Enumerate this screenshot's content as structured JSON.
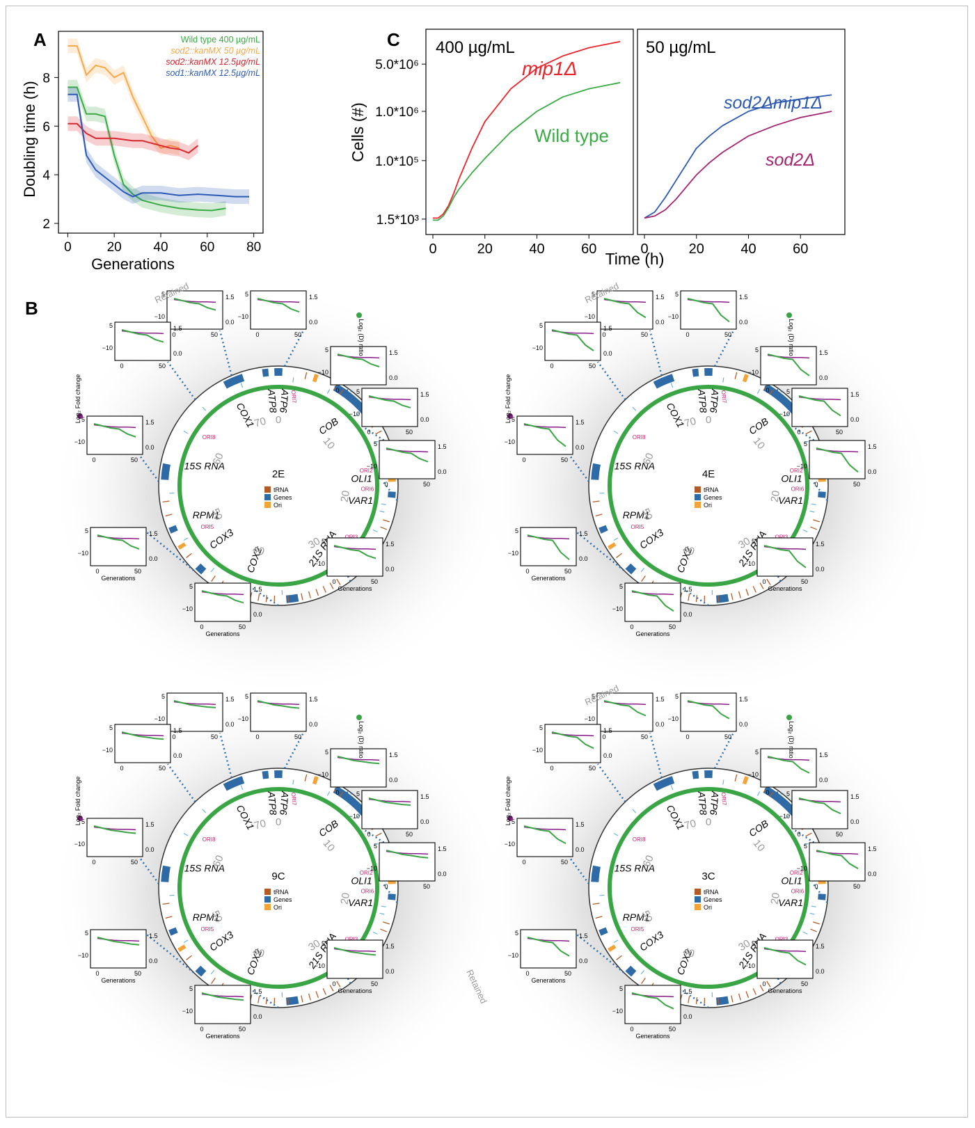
{
  "panel_letters": {
    "a": "A",
    "b": "B",
    "c": "C"
  },
  "colors": {
    "wild_type": "#3aaa45",
    "sod2_kanmx": "#f5a94a",
    "sod2_kanmx_low": "#d9262f",
    "sod1_kanmx": "#2b5ab5",
    "mip1": "#e8262b",
    "sod2_mip1": "#2b58b0",
    "sod2": "#a3236f",
    "trna": "#b35b26",
    "genes": "#2e6aa6",
    "ori": "#f2a33a",
    "ring_green": "#3aa545",
    "ori_label": "#d01a6e",
    "purple_dot": "#8a1b8a",
    "green_dot": "#3aa545"
  },
  "panel_a": {
    "legend": [
      {
        "label": "Wild type 400 µg/mL",
        "color": "#3aaa45"
      },
      {
        "label": "sod2::kanMX 50 µg/mL",
        "color": "#f5a94a"
      },
      {
        "label": "sod2::kanMX 12.5µg/mL",
        "color": "#d9262f"
      },
      {
        "label": "sod1::kanMX 12.5µg/mL",
        "color": "#2b5ab5"
      }
    ]
  },
  "panel_c": {
    "left_title": "400 µg/mL",
    "right_title": "50 µg/mL",
    "label_mip1": "mip1Δ",
    "label_wt": "Wild type",
    "label_sod2mip1": "sod2Δmip1Δ",
    "label_sod2": "sod2Δ"
  },
  "chart_data": [
    {
      "type": "line",
      "panel": "A",
      "xlabel": "Generations",
      "ylabel": "Doubling time (h)",
      "xlim": [
        -4,
        84
      ],
      "ylim": [
        1.6,
        9.9
      ],
      "xticks": [
        0,
        20,
        40,
        60,
        80
      ],
      "yticks": [
        2,
        4,
        6,
        8
      ],
      "series": [
        {
          "name": "Wild type 400 µg/mL",
          "x": [
            0,
            4,
            8,
            12,
            16,
            20,
            24,
            28,
            32,
            40,
            48,
            56,
            62,
            68
          ],
          "y": [
            7.6,
            7.6,
            6.5,
            6.5,
            6.4,
            4.8,
            3.6,
            3.2,
            2.95,
            2.75,
            2.62,
            2.55,
            2.53,
            2.62
          ]
        },
        {
          "name": "sod2::kanMX 50 µg/mL",
          "x": [
            0,
            4,
            8,
            12,
            16,
            20,
            24,
            28,
            32,
            36,
            40,
            44,
            48
          ],
          "y": [
            9.3,
            9.3,
            8.1,
            8.5,
            8.4,
            8.0,
            8.2,
            7.2,
            6.4,
            5.6,
            5.1,
            5.2,
            5.1
          ]
        },
        {
          "name": "sod2::kanMX 12.5µg/mL",
          "x": [
            0,
            4,
            8,
            12,
            16,
            20,
            24,
            28,
            32,
            36,
            40,
            44,
            48,
            52,
            56
          ],
          "y": [
            6.1,
            6.1,
            5.7,
            5.5,
            5.5,
            5.5,
            5.45,
            5.4,
            5.4,
            5.3,
            5.2,
            5.1,
            5.05,
            4.9,
            5.2
          ]
        },
        {
          "name": "sod1::kanMX 12.5µg/mL",
          "x": [
            0,
            4,
            8,
            12,
            16,
            20,
            24,
            28,
            32,
            40,
            48,
            56,
            64,
            72,
            78
          ],
          "y": [
            7.3,
            7.3,
            4.8,
            4.2,
            3.9,
            3.6,
            3.3,
            3.1,
            3.25,
            3.25,
            3.15,
            3.2,
            3.15,
            3.1,
            3.1
          ]
        }
      ]
    },
    {
      "type": "line",
      "panel": "C",
      "subplot": "400 µg/mL",
      "xlabel": "Time (h)",
      "ylabel": "Cells (#)",
      "xticks": [
        0,
        20,
        40,
        60
      ],
      "ytick_labels": [
        "1.5*10³",
        "1.0*10⁵",
        "1.0*10⁶",
        "5.0*10⁶"
      ],
      "series": [
        {
          "name": "mip1Δ",
          "x": [
            0,
            2,
            4,
            6,
            8,
            10,
            15,
            20,
            30,
            40,
            50,
            60,
            72
          ],
          "y": [
            0.08,
            0.08,
            0.1,
            0.14,
            0.2,
            0.27,
            0.42,
            0.55,
            0.71,
            0.81,
            0.87,
            0.91,
            0.94
          ]
        },
        {
          "name": "Wild type",
          "x": [
            0,
            2,
            4,
            6,
            8,
            10,
            15,
            20,
            30,
            40,
            50,
            60,
            72
          ],
          "y": [
            0.07,
            0.07,
            0.09,
            0.13,
            0.18,
            0.22,
            0.3,
            0.37,
            0.5,
            0.6,
            0.67,
            0.71,
            0.74
          ]
        }
      ]
    },
    {
      "type": "line",
      "panel": "C",
      "subplot": "50 µg/mL",
      "xlabel": "Time (h)",
      "xticks": [
        0,
        20,
        40,
        60
      ],
      "series": [
        {
          "name": "sod2Δmip1Δ",
          "x": [
            0,
            4,
            8,
            12,
            16,
            20,
            25,
            30,
            40,
            50,
            60,
            72
          ],
          "y": [
            0.08,
            0.11,
            0.18,
            0.26,
            0.34,
            0.42,
            0.48,
            0.53,
            0.6,
            0.64,
            0.66,
            0.68
          ]
        },
        {
          "name": "sod2Δ",
          "x": [
            0,
            4,
            8,
            12,
            16,
            20,
            25,
            30,
            40,
            50,
            60,
            72
          ],
          "y": [
            0.08,
            0.09,
            0.12,
            0.17,
            0.23,
            0.29,
            0.35,
            0.4,
            0.48,
            0.53,
            0.57,
            0.6
          ]
        }
      ]
    }
  ],
  "panel_b": {
    "genome_labels": [
      "COX1",
      "ATP8",
      "ATP6",
      "COB",
      "OLI1",
      "VAR1",
      "21S RNA",
      "COX2",
      "COX3",
      "RPM1",
      "15S RNA"
    ],
    "ori_labels": [
      "ORI7",
      "ORI2",
      "ORI6",
      "ORI3",
      "ORI4",
      "ORI1",
      "ORI5",
      "ORI8"
    ],
    "coord_labels": [
      "0",
      "10",
      "20",
      "30",
      "40",
      "50",
      "60",
      "70"
    ],
    "legend": [
      "tRNA",
      "Genes",
      "Ori"
    ],
    "retained": "Retained",
    "left_axis_label": "Log₂ Fold change",
    "right_axis_label": "Log₂ (D) ratio",
    "generations": "Generations",
    "inset_y_left": [
      "5",
      "−10"
    ],
    "inset_y_right": [
      "1.5",
      "0.0"
    ],
    "inset_x": [
      "0",
      "50"
    ],
    "circles": [
      {
        "id": "2E",
        "decline": 0.45
      },
      {
        "id": "4E",
        "decline": 1.0
      },
      {
        "id": "9C",
        "decline": 0.12
      },
      {
        "id": "3C",
        "decline": 0.7
      }
    ]
  }
}
